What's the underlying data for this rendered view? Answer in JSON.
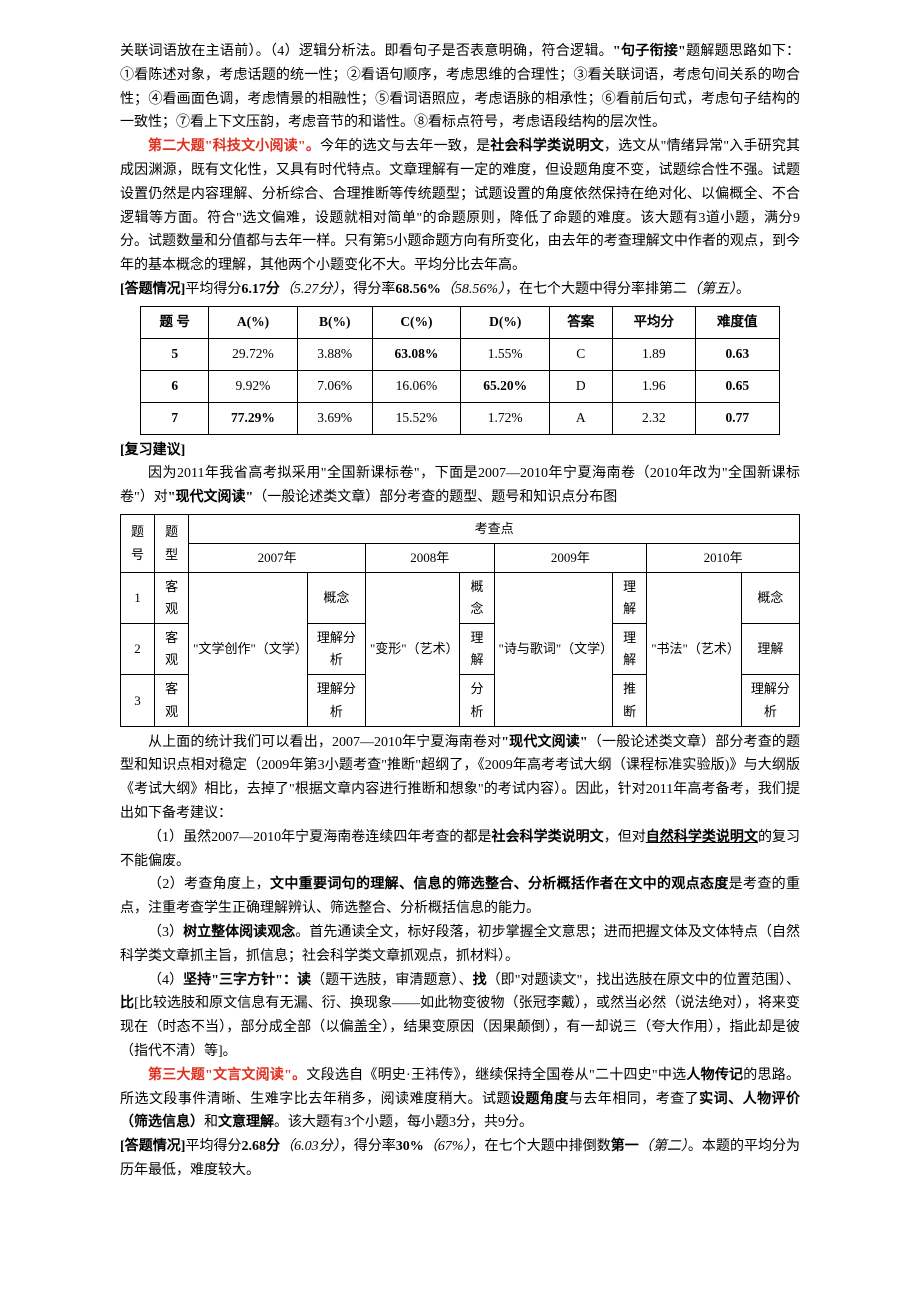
{
  "para1": "关联词语放在主语前）。（4）逻辑分析法。即看句子是否表意明确，符合逻辑。",
  "para1_bold": "\"句子衔接\"",
  "para1_tail": "题解题思路如下：①看陈述对象，考虑话题的统一性；②看语句顺序，考虑思维的合理性；③看关联词语，考虑句间关系的吻合性；④看画面色调，考虑情景的相融性；⑤看词语照应，考虑语脉的相承性；⑥看前后句式，考虑句子结构的一致性；⑦看上下文压韵，考虑音节的和谐性。⑧看标点符号，考虑语段结构的层次性。",
  "p2_red": "第二大题\"科技文小阅读\"。",
  "p2_a": "今年的选文与去年一致，是",
  "p2_bold": "社会科学类说明文",
  "p2_b": "，选文从\"情绪异常\"入手研究其成因渊源，既有文化性，又具有时代特点。文章理解有一定的难度，但设题角度不变，试题综合性不强。试题设置仍然是内容理解、分析综合、合理推断等传统题型；试题设置的角度依然保持在绝对化、以偏概全、不合逻辑等方面。符合\"选文偏难，设题就相对简单\"的命题原则，降低了命题的难度。该大题有3道小题，满分9分。试题数量和分值都与去年一样。只有第5小题命题方向有所变化，由去年的考查理解文中作者的观点，到今年的基本概念的理解，其他两个小题变化不大。平均分比去年高。",
  "ans_label": "[答题情况]",
  "ans_a": "平均得分",
  "ans_score": "6.17分",
  "ans_it1": "（5.27分）",
  "ans_b": "，得分率",
  "ans_rate": "68.56%",
  "ans_it2": "（58.56%）",
  "ans_c": "，在七个大题中得分率排第二",
  "ans_it3": "（第五）",
  "ans_d": "。",
  "table1": {
    "headers": [
      "题 号",
      "A(%)",
      "B(%)",
      "C(%)",
      "D(%)",
      "答案",
      "平均分",
      "难度值"
    ],
    "rows": [
      [
        "5",
        "29.72%",
        "3.88%",
        "63.08%",
        "1.55%",
        "C",
        "1.89",
        "0.63"
      ],
      [
        "6",
        "9.92%",
        "7.06%",
        "16.06%",
        "65.20%",
        "D",
        "1.96",
        "0.65"
      ],
      [
        "7",
        "77.29%",
        "3.69%",
        "15.52%",
        "1.72%",
        "A",
        "2.32",
        "0.77"
      ]
    ],
    "bold_cells": [
      [
        0,
        3
      ],
      [
        1,
        4
      ],
      [
        2,
        1
      ]
    ]
  },
  "review_label": "[复习建议]",
  "review_p": "因为2011年我省高考拟采用\"全国新课标卷\"，下面是2007—2010年宁夏海南卷（2010年改为\"全国新课标卷\"）对",
  "review_bold": "\"现代文阅读\"",
  "review_tail": "（一般论述类文章）部分考查的题型、题号和知识点分布图",
  "table2": {
    "h_no": "题号",
    "h_type": "题型",
    "h_exam": "考查点",
    "years": [
      "2007年",
      "2008年",
      "2009年",
      "2010年"
    ],
    "rows_no": [
      "1",
      "2",
      "3"
    ],
    "rows_type": [
      "客观",
      "客观",
      "客观"
    ],
    "topic07": "\"文学创作\"（文学）",
    "cells07": [
      "概念",
      "理解分析",
      "理解分析"
    ],
    "topic08": "\"变形\"（艺术）",
    "cells08": [
      "概念",
      "理解",
      "分析"
    ],
    "topic09": "\"诗与歌词\"（文学）",
    "cells09": [
      "理解",
      "理解",
      "推断"
    ],
    "topic10": "\"书法\"（艺术）",
    "cells10": [
      "概念",
      "理解",
      "理解分析"
    ]
  },
  "after_t2_a": "从上面的统计我们可以看出，2007—2010年宁夏海南卷对",
  "after_t2_bold": "\"现代文阅读\"",
  "after_t2_b": "（一般论述类文章）部分考查的题型和知识点相对稳定（2009年第3小题考查\"推断\"超纲了，《2009年高考考试大纲（课程标准实验版)》与大纲版《考试大纲》相比，去掉了\"根据文章内容进行推断和想象\"的考试内容）。因此，针对2011年高考备考，我们提出如下备考建议：",
  "s1_a": "（1）虽然2007—2010年宁夏海南卷连续四年考查的都是",
  "s1_b": "社会科学类说明文",
  "s1_c": "，但对",
  "s1_d": "自然科学类说明文",
  "s1_e": "的复习不能偏废。",
  "s2_a": "（2）考查角度上，",
  "s2_b": "文中重要词句的理解、信息的筛选整合、分析概括作者在文中的观点态度",
  "s2_c": "是考查的重点，注重考查学生正确理解辨认、筛选整合、分析概括信息的能力。",
  "s3_a": "（3）",
  "s3_b": "树立整体阅读观念",
  "s3_c": "。首先通读全文，标好段落，初步掌握全文意思；进而把握文体及文体特点（自然科学类文章抓主旨，抓信息；社会科学类文章抓观点，抓材料）。",
  "s4_a": "（4）",
  "s4_b": "坚持\"三字方针\"：读",
  "s4_c": "（题干选肢，审清题意）、",
  "s4_d": "找",
  "s4_e": "（即\"对题读文\"，找出选肢在原文中的位置范围）、",
  "s4_f": "比",
  "s4_g": "[比较选肢和原文信息有无漏、衍、换现象——如此物变彼物（张冠李戴），或然当必然（说法绝对），将来变现在（时态不当），部分成全部（以偏盖全），结果变原因（因果颠倒），有一却说三（夸大作用），指此却是彼（指代不清）等]。",
  "p3_red": "第三大题\"文言文阅读\"。",
  "p3_a": "文段选自《明史·王祎传》，继续保持全国卷从\"二十四史\"中选",
  "p3_b": "人物传记",
  "p3_c": "的思路。所选文段事件清晰、生难字比去年稍多，阅读难度稍大。试题",
  "p3_d": "设题角度",
  "p3_e": "与去年相同，考查了",
  "p3_f": "实词、人物评价（筛选信息）",
  "p3_g": "和",
  "p3_h": "文意理解",
  "p3_i": "。该大题有3个小题，每小题3分，共9分。",
  "ans2_a": "平均得分",
  "ans2_score": "2.68分",
  "ans2_it1": "（6.03分）",
  "ans2_b": "，得分率",
  "ans2_rate": "30%",
  "ans2_it2": "（67%）",
  "ans2_c": "，在七个大题中排倒数",
  "ans2_d": "第一",
  "ans2_it3": "（第二）",
  "ans2_e": "。本题的平均分为历年最低，难度较大。"
}
